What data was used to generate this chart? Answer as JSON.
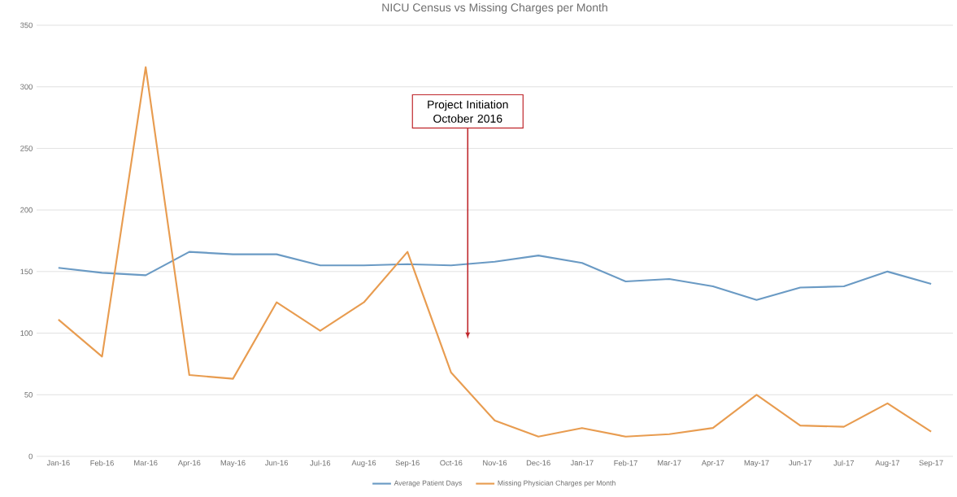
{
  "chart_data": {
    "type": "line",
    "title": "NICU Census vs Missing Charges per Month",
    "categories": [
      "Jan-16",
      "Feb-16",
      "Mar-16",
      "Apr-16",
      "May-16",
      "Jun-16",
      "Jul-16",
      "Aug-16",
      "Sep-16",
      "Oct-16",
      "Nov-16",
      "Dec-16",
      "Jan-17",
      "Feb-17",
      "Mar-17",
      "Apr-17",
      "May-17",
      "Jun-17",
      "Jul-17",
      "Aug-17",
      "Sep-17"
    ],
    "series": [
      {
        "name": "Average Patient Days",
        "color": "#6a9ac4",
        "values": [
          153,
          149,
          147,
          166,
          164,
          164,
          155,
          155,
          156,
          155,
          158,
          163,
          157,
          142,
          144,
          138,
          127,
          137,
          138,
          150,
          140
        ]
      },
      {
        "name": "Missing Physician Charges per Month",
        "color": "#e89c50",
        "values": [
          111,
          81,
          316,
          66,
          63,
          125,
          102,
          125,
          166,
          68,
          29,
          16,
          23,
          16,
          18,
          23,
          50,
          25,
          24,
          43,
          20
        ]
      }
    ],
    "ylim": [
      0,
      350
    ],
    "yticks": [
      0,
      50,
      100,
      150,
      200,
      250,
      300,
      350
    ],
    "grid": "y",
    "legend": "bottom",
    "annotations": [
      "Project Initiation October 2016"
    ]
  }
}
